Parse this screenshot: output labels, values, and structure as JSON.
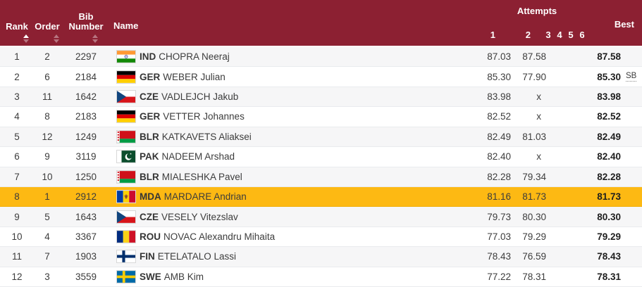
{
  "header": {
    "rank_label": "Rank",
    "order_label": "Order",
    "bib_label": "Bib Number",
    "name_label": "Name",
    "attempts_label": "Attempts",
    "attempt_numbers": [
      "1",
      "2",
      "3",
      "4",
      "5",
      "6"
    ],
    "best_label": "Best",
    "sort_state": {
      "rank": "asc",
      "order": "none",
      "bib": "none"
    }
  },
  "colors": {
    "header_bg": "#8C2032",
    "highlight_row": "#FDB913",
    "alt_row": "#F6F6F7",
    "text": "#3C3C3C"
  },
  "rows": [
    {
      "rank": "1",
      "order": "2",
      "bib": "2297",
      "flag": "IND",
      "country": "IND",
      "name": "CHOPRA Neeraj",
      "attempts": [
        "87.03",
        "87.58",
        "",
        "",
        "",
        ""
      ],
      "best": "87.58",
      "note": "",
      "highlighted": false
    },
    {
      "rank": "2",
      "order": "6",
      "bib": "2184",
      "flag": "GER",
      "country": "GER",
      "name": "WEBER Julian",
      "attempts": [
        "85.30",
        "77.90",
        "",
        "",
        "",
        ""
      ],
      "best": "85.30",
      "note": "SB",
      "highlighted": false
    },
    {
      "rank": "3",
      "order": "11",
      "bib": "1642",
      "flag": "CZE",
      "country": "CZE",
      "name": "VADLEJCH Jakub",
      "attempts": [
        "83.98",
        "x",
        "",
        "",
        "",
        ""
      ],
      "best": "83.98",
      "note": "",
      "highlighted": false
    },
    {
      "rank": "4",
      "order": "8",
      "bib": "2183",
      "flag": "GER",
      "country": "GER",
      "name": "VETTER Johannes",
      "attempts": [
        "82.52",
        "x",
        "",
        "",
        "",
        ""
      ],
      "best": "82.52",
      "note": "",
      "highlighted": false
    },
    {
      "rank": "5",
      "order": "12",
      "bib": "1249",
      "flag": "BLR",
      "country": "BLR",
      "name": "KATKAVETS Aliaksei",
      "attempts": [
        "82.49",
        "81.03",
        "",
        "",
        "",
        ""
      ],
      "best": "82.49",
      "note": "",
      "highlighted": false
    },
    {
      "rank": "6",
      "order": "9",
      "bib": "3119",
      "flag": "PAK",
      "country": "PAK",
      "name": "NADEEM Arshad",
      "attempts": [
        "82.40",
        "x",
        "",
        "",
        "",
        ""
      ],
      "best": "82.40",
      "note": "",
      "highlighted": false
    },
    {
      "rank": "7",
      "order": "10",
      "bib": "1250",
      "flag": "BLR",
      "country": "BLR",
      "name": "MIALESHKA Pavel",
      "attempts": [
        "82.28",
        "79.34",
        "",
        "",
        "",
        ""
      ],
      "best": "82.28",
      "note": "",
      "highlighted": false
    },
    {
      "rank": "8",
      "order": "1",
      "bib": "2912",
      "flag": "MDA",
      "country": "MDA",
      "name": "MARDARE Andrian",
      "attempts": [
        "81.16",
        "81.73",
        "",
        "",
        "",
        ""
      ],
      "best": "81.73",
      "note": "",
      "highlighted": true
    },
    {
      "rank": "9",
      "order": "5",
      "bib": "1643",
      "flag": "CZE",
      "country": "CZE",
      "name": "VESELY Vitezslav",
      "attempts": [
        "79.73",
        "80.30",
        "",
        "",
        "",
        ""
      ],
      "best": "80.30",
      "note": "",
      "highlighted": false
    },
    {
      "rank": "10",
      "order": "4",
      "bib": "3367",
      "flag": "ROU",
      "country": "ROU",
      "name": "NOVAC Alexandru Mihaita",
      "attempts": [
        "77.03",
        "79.29",
        "",
        "",
        "",
        ""
      ],
      "best": "79.29",
      "note": "",
      "highlighted": false
    },
    {
      "rank": "11",
      "order": "7",
      "bib": "1903",
      "flag": "FIN",
      "country": "FIN",
      "name": "ETELATALO Lassi",
      "attempts": [
        "78.43",
        "76.59",
        "",
        "",
        "",
        ""
      ],
      "best": "78.43",
      "note": "",
      "highlighted": false
    },
    {
      "rank": "12",
      "order": "3",
      "bib": "3559",
      "flag": "SWE",
      "country": "SWE",
      "name": "AMB Kim",
      "attempts": [
        "77.22",
        "78.31",
        "",
        "",
        "",
        ""
      ],
      "best": "78.31",
      "note": "",
      "highlighted": false
    }
  ]
}
